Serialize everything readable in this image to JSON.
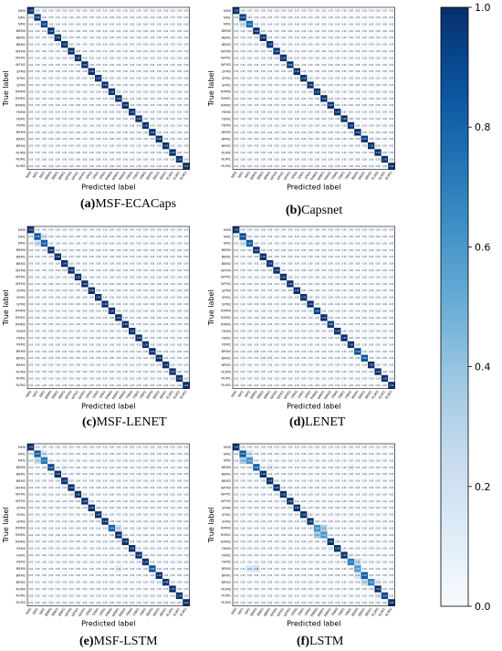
{
  "class_labels": [
    "NM0",
    "NM1",
    "NM2",
    "BBM0",
    "BBM1",
    "BBM2",
    "WFM0",
    "WFM1",
    "WFM2",
    "SPM0",
    "SPM1",
    "SPM2",
    "RMM0",
    "RMM1",
    "RMM2",
    "FBM0",
    "FBM1",
    "FBM2",
    "BRM0",
    "BRM1",
    "BRM2",
    "RUM0",
    "RUM1",
    "RUM2"
  ],
  "axis": {
    "xlabel": "Predicted label",
    "ylabel": "True label"
  },
  "colorbar": {
    "ticks": [
      "1.0",
      "0.8",
      "0.6",
      "0.4",
      "0.2",
      "0.0"
    ],
    "range": [
      0,
      1
    ],
    "low_color": "#f7fbff",
    "high_color": "#08306b"
  },
  "chart_data": [
    {
      "type": "heatmap",
      "id": "a",
      "caption_tag": "(a)",
      "caption_text": "MSF-ECACaps",
      "diag": [
        1.0,
        0.96,
        0.93,
        1.0,
        1.0,
        1.0,
        1.0,
        1.0,
        1.0,
        1.0,
        1.0,
        1.0,
        1.0,
        1.0,
        1.0,
        1.0,
        1.0,
        1.0,
        1.0,
        1.0,
        1.0,
        1.0,
        1.0,
        1.0
      ],
      "off": []
    },
    {
      "type": "heatmap",
      "id": "b",
      "caption_tag": "(b)",
      "caption_text": "Capsnet",
      "diag": [
        1.0,
        0.95,
        0.8,
        1.0,
        1.0,
        1.0,
        1.0,
        1.0,
        0.98,
        1.0,
        1.0,
        1.0,
        1.0,
        1.0,
        0.97,
        1.0,
        1.0,
        1.0,
        1.0,
        0.97,
        1.0,
        1.0,
        1.0,
        1.0
      ],
      "off": [
        [
          2,
          1,
          0.15
        ],
        [
          1,
          2,
          0.04
        ]
      ]
    },
    {
      "type": "heatmap",
      "id": "c",
      "caption_tag": "(c)",
      "caption_text": "MSF-LENET",
      "diag": [
        1.0,
        0.86,
        0.83,
        1.0,
        1.0,
        1.0,
        1.0,
        1.0,
        1.0,
        1.0,
        1.0,
        1.0,
        1.0,
        1.0,
        1.0,
        1.0,
        1.0,
        1.0,
        1.0,
        1.0,
        1.0,
        1.0,
        1.0,
        1.0
      ],
      "off": [
        [
          1,
          2,
          0.13
        ],
        [
          2,
          1,
          0.16
        ]
      ]
    },
    {
      "type": "heatmap",
      "id": "d",
      "caption_tag": "(d)",
      "caption_text": "LENET",
      "diag": [
        1.0,
        0.9,
        0.85,
        1.0,
        1.0,
        1.0,
        1.0,
        1.0,
        1.0,
        1.0,
        1.0,
        1.0,
        0.95,
        1.0,
        0.96,
        1.0,
        1.0,
        1.0,
        0.9,
        0.86,
        1.0,
        1.0,
        1.0,
        1.0
      ],
      "off": [
        [
          2,
          1,
          0.12
        ],
        [
          18,
          3,
          0.05
        ],
        [
          19,
          4,
          0.06
        ],
        [
          19,
          5,
          0.05
        ],
        [
          13,
          14,
          0.03
        ]
      ]
    },
    {
      "type": "heatmap",
      "id": "e",
      "caption_tag": "(e)",
      "caption_text": "MSF-LSTM",
      "diag": [
        1.0,
        0.83,
        0.74,
        0.91,
        1.0,
        1.0,
        1.0,
        1.0,
        1.0,
        1.0,
        1.0,
        1.0,
        0.81,
        1.0,
        1.0,
        1.0,
        1.0,
        1.0,
        0.86,
        1.0,
        0.98,
        1.0,
        1.0,
        1.0
      ],
      "off": [
        [
          1,
          2,
          0.16
        ],
        [
          2,
          1,
          0.22
        ],
        [
          3,
          5,
          0.07
        ],
        [
          3,
          18,
          0.05
        ],
        [
          12,
          13,
          0.17
        ],
        [
          18,
          13,
          0.1
        ],
        [
          20,
          19,
          0.03
        ]
      ]
    },
    {
      "type": "heatmap",
      "id": "f",
      "caption_tag": "(f)",
      "caption_text": "LSTM",
      "diag": [
        1.0,
        0.84,
        0.63,
        0.82,
        1.0,
        1.0,
        1.0,
        1.0,
        1.0,
        1.0,
        1.0,
        1.0,
        0.63,
        0.6,
        1.0,
        1.0,
        1.0,
        0.72,
        0.59,
        0.83,
        0.68,
        1.0,
        0.92,
        1.0
      ],
      "off": [
        [
          1,
          2,
          0.16
        ],
        [
          2,
          1,
          0.34
        ],
        [
          3,
          5,
          0.1
        ],
        [
          3,
          17,
          0.08
        ],
        [
          12,
          13,
          0.32
        ],
        [
          13,
          12,
          0.36
        ],
        [
          17,
          18,
          0.25
        ],
        [
          18,
          2,
          0.16
        ],
        [
          18,
          3,
          0.18
        ],
        [
          19,
          18,
          0.14
        ],
        [
          20,
          19,
          0.24
        ],
        [
          20,
          21,
          0.08
        ],
        [
          22,
          21,
          0.08
        ]
      ]
    }
  ]
}
